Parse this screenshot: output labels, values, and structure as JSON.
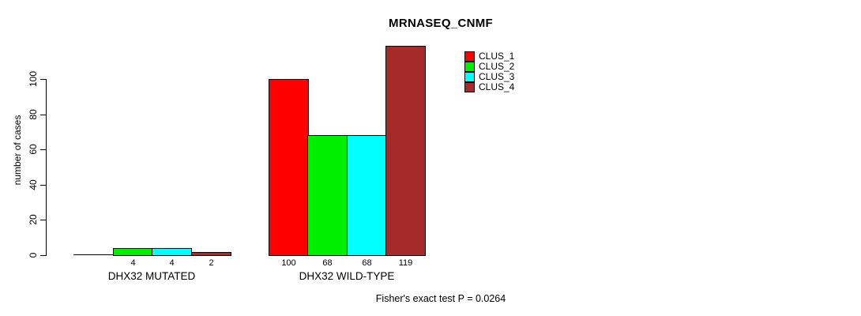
{
  "chart_data": {
    "type": "bar",
    "title": "MRNASEQ_CNMF",
    "ylabel": "number of cases",
    "xlabel": "",
    "ylim": [
      0,
      100
    ],
    "yticks": [
      0,
      20,
      40,
      60,
      80,
      100
    ],
    "grid": false,
    "legend_position": "top-right",
    "categories": [
      "DHX32 MUTATED",
      "DHX32 WILD-TYPE"
    ],
    "series": [
      {
        "name": "CLUS_1",
        "color": "#FF0000",
        "values": [
          0,
          100
        ]
      },
      {
        "name": "CLUS_2",
        "color": "#00EE00",
        "values": [
          4,
          68
        ]
      },
      {
        "name": "CLUS_3",
        "color": "#00FFFF",
        "values": [
          4,
          68
        ]
      },
      {
        "name": "CLUS_4",
        "color": "#A52A2A",
        "values": [
          2,
          119
        ]
      }
    ],
    "bar_value_labels": [
      [
        "",
        "4",
        "4",
        "2"
      ],
      [
        "100",
        "68",
        "68",
        "119"
      ]
    ],
    "annotation": "Fisher's exact test P = 0.0264",
    "axis_color": "#000000",
    "text_color": "#000000",
    "background": "#FFFFFF"
  }
}
